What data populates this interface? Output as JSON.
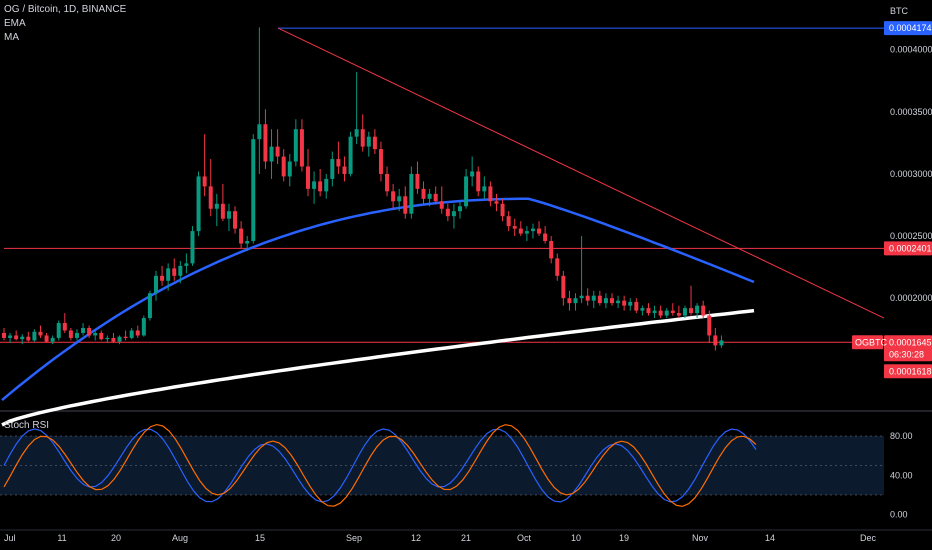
{
  "header": {
    "symbol_line": "OG / Bitcoin, 1D, BINANCE",
    "indicators": [
      "EMA",
      "MA"
    ],
    "currency": "BTC"
  },
  "price_axis": {
    "ticks": [
      {
        "v": 0.0004,
        "label": "0.0004000"
      },
      {
        "v": 0.00035,
        "label": "0.0003500"
      },
      {
        "v": 0.0003,
        "label": "0.0003000"
      },
      {
        "v": 0.00025,
        "label": "0.0002500"
      },
      {
        "v": 0.0002,
        "label": "0.0002000"
      }
    ]
  },
  "tags": {
    "high": {
      "v": 0.0004174,
      "label": "0.0004174",
      "color": "#2962ff"
    },
    "level": {
      "v": 0.0002401,
      "label": "0.0002401",
      "color": "#f23645"
    },
    "current": {
      "v": 0.0001645,
      "label": "0.0001645",
      "countdown": "06:30:28",
      "color": "#f23645"
    },
    "low": {
      "v": 0.0001618,
      "label": "0.0001618",
      "color": "#f23645"
    },
    "symbol": "OGBTC"
  },
  "time_axis": [
    "Jul",
    "11",
    "20",
    "Aug",
    "15",
    "Sep",
    "12",
    "21",
    "Oct",
    "10",
    "19",
    "Nov",
    "14",
    "Dec"
  ],
  "stoch": {
    "title": "Stoch RSI",
    "ticks": [
      {
        "v": 80,
        "label": "80.00"
      },
      {
        "v": 40,
        "label": "40.00"
      },
      {
        "v": 0,
        "label": "0.00"
      }
    ],
    "band": [
      20,
      80
    ]
  },
  "colors": {
    "up": "#089981",
    "down": "#f23645",
    "ema": "#2962ff",
    "ma": "#ffffff",
    "k": "#2962ff",
    "d": "#ff6d00"
  },
  "chart_data": {
    "type": "candlestick",
    "series_note": "OG/BTC daily candles, Jul 1 - Nov 9",
    "price_range": [
      0.00011,
      0.00044
    ],
    "dates": [
      "Jul 1",
      "Nov 9"
    ],
    "candles": [
      [
        0.000172,
        0.000176,
        0.000166,
        0.000168
      ],
      [
        0.000168,
        0.000172,
        0.000164,
        0.00017
      ],
      [
        0.00017,
        0.000174,
        0.000166,
        0.000167
      ],
      [
        0.000167,
        0.000171,
        0.000163,
        0.000169
      ],
      [
        0.000169,
        0.000173,
        0.000165,
        0.000166
      ],
      [
        0.000166,
        0.000175,
        0.000165,
        0.000173
      ],
      [
        0.000173,
        0.000178,
        0.000168,
        0.00017
      ],
      [
        0.00017,
        0.000172,
        0.000164,
        0.000165
      ],
      [
        0.000165,
        0.00017,
        0.000163,
        0.000168
      ],
      [
        0.000168,
        0.000182,
        0.000166,
        0.00018
      ],
      [
        0.00018,
        0.000188,
        0.000172,
        0.000174
      ],
      [
        0.000174,
        0.000176,
        0.000166,
        0.000168
      ],
      [
        0.000168,
        0.000175,
        0.000166,
        0.000172
      ],
      [
        0.000172,
        0.00018,
        0.00017,
        0.000176
      ],
      [
        0.000176,
        0.000178,
        0.000168,
        0.00017
      ],
      [
        0.00017,
        0.000174,
        0.000166,
        0.000172
      ],
      [
        0.000172,
        0.000174,
        0.000166,
        0.000167
      ],
      [
        0.000167,
        0.00017,
        0.000164,
        0.000168
      ],
      [
        0.000168,
        0.000172,
        0.000164,
        0.000165
      ],
      [
        0.000165,
        0.00017,
        0.000163,
        0.000169
      ],
      [
        0.000169,
        0.000174,
        0.000166,
        0.000168
      ],
      [
        0.000168,
        0.000176,
        0.000167,
        0.000174
      ],
      [
        0.000174,
        0.000178,
        0.000168,
        0.00017
      ],
      [
        0.00017,
        0.000186,
        0.000169,
        0.000184
      ],
      [
        0.000184,
        0.000206,
        0.000182,
        0.000204
      ],
      [
        0.000204,
        0.000222,
        0.000198,
        0.000218
      ],
      [
        0.000218,
        0.000226,
        0.00021,
        0.000214
      ],
      [
        0.000214,
        0.000228,
        0.000206,
        0.000224
      ],
      [
        0.000224,
        0.000232,
        0.000214,
        0.000218
      ],
      [
        0.000218,
        0.00023,
        0.000212,
        0.000226
      ],
      [
        0.000226,
        0.000236,
        0.00022,
        0.000228
      ],
      [
        0.000228,
        0.000258,
        0.000226,
        0.000254
      ],
      [
        0.000254,
        0.000302,
        0.00025,
        0.000298
      ],
      [
        0.000298,
        0.000332,
        0.000282,
        0.00029
      ],
      [
        0.00029,
        0.000312,
        0.000266,
        0.000272
      ],
      [
        0.000272,
        0.000284,
        0.000258,
        0.000276
      ],
      [
        0.000276,
        0.000292,
        0.000262,
        0.000264
      ],
      [
        0.000264,
        0.000276,
        0.000254,
        0.00027
      ],
      [
        0.00027,
        0.000274,
        0.000252,
        0.000256
      ],
      [
        0.000256,
        0.000262,
        0.00024,
        0.000244
      ],
      [
        0.000244,
        0.00025,
        0.000238,
        0.000246
      ],
      [
        0.000246,
        0.000332,
        0.000244,
        0.000328
      ],
      [
        0.000328,
        0.000418,
        0.0003,
        0.00034
      ],
      [
        0.00034,
        0.000352,
        0.000304,
        0.00031
      ],
      [
        0.00031,
        0.000336,
        0.000296,
        0.000322
      ],
      [
        0.000322,
        0.000336,
        0.000308,
        0.000314
      ],
      [
        0.000314,
        0.00032,
        0.000294,
        0.000298
      ],
      [
        0.000298,
        0.000316,
        0.00029,
        0.00031
      ],
      [
        0.00031,
        0.000344,
        0.000306,
        0.000336
      ],
      [
        0.000336,
        0.000344,
        0.000302,
        0.000306
      ],
      [
        0.000306,
        0.00032,
        0.000282,
        0.000288
      ],
      [
        0.000288,
        0.000302,
        0.000276,
        0.000294
      ],
      [
        0.000294,
        0.000304,
        0.000282,
        0.000286
      ],
      [
        0.000286,
        0.0003,
        0.00028,
        0.000296
      ],
      [
        0.000296,
        0.000318,
        0.00029,
        0.000312
      ],
      [
        0.000312,
        0.000326,
        0.0003,
        0.000306
      ],
      [
        0.000306,
        0.000314,
        0.000294,
        0.0003
      ],
      [
        0.0003,
        0.000334,
        0.000298,
        0.00033
      ],
      [
        0.00033,
        0.000382,
        0.000324,
        0.000336
      ],
      [
        0.000336,
        0.000348,
        0.000318,
        0.000322
      ],
      [
        0.000322,
        0.000334,
        0.000314,
        0.00033
      ],
      [
        0.00033,
        0.000336,
        0.000316,
        0.00032
      ],
      [
        0.00032,
        0.000326,
        0.000294,
        0.0003
      ],
      [
        0.0003,
        0.000306,
        0.000282,
        0.000286
      ],
      [
        0.000286,
        0.000292,
        0.000272,
        0.000278
      ],
      [
        0.000278,
        0.000288,
        0.00027,
        0.000282
      ],
      [
        0.000282,
        0.00029,
        0.000264,
        0.000268
      ],
      [
        0.000268,
        0.000306,
        0.000264,
        0.0003
      ],
      [
        0.0003,
        0.00031,
        0.000284,
        0.000288
      ],
      [
        0.000288,
        0.000294,
        0.000276,
        0.00028
      ],
      [
        0.00028,
        0.000288,
        0.000274,
        0.000284
      ],
      [
        0.000284,
        0.00029,
        0.000276,
        0.000278
      ],
      [
        0.000278,
        0.00029,
        0.000268,
        0.000272
      ],
      [
        0.000272,
        0.000276,
        0.000262,
        0.000266
      ],
      [
        0.000266,
        0.000276,
        0.000256,
        0.00027
      ],
      [
        0.00027,
        0.000278,
        0.000264,
        0.000274
      ],
      [
        0.000274,
        0.000304,
        0.000272,
        0.000298
      ],
      [
        0.000298,
        0.000314,
        0.00029,
        0.000302
      ],
      [
        0.000302,
        0.000306,
        0.000282,
        0.000286
      ],
      [
        0.000286,
        0.000298,
        0.00028,
        0.00029
      ],
      [
        0.00029,
        0.000294,
        0.000274,
        0.000278
      ],
      [
        0.000278,
        0.000284,
        0.00027,
        0.000276
      ],
      [
        0.000276,
        0.00028,
        0.000262,
        0.000266
      ],
      [
        0.000266,
        0.00027,
        0.000254,
        0.000258
      ],
      [
        0.000258,
        0.000264,
        0.00025,
        0.000256
      ],
      [
        0.000256,
        0.000262,
        0.00025,
        0.000252
      ],
      [
        0.000252,
        0.000258,
        0.000246,
        0.000254
      ],
      [
        0.000254,
        0.00026,
        0.000248,
        0.000256
      ],
      [
        0.000256,
        0.000262,
        0.00025,
        0.000252
      ],
      [
        0.000252,
        0.000258,
        0.000244,
        0.000246
      ],
      [
        0.000246,
        0.00025,
        0.000228,
        0.000232
      ],
      [
        0.000232,
        0.000236,
        0.000214,
        0.000218
      ],
      [
        0.000218,
        0.000222,
        0.000194,
        0.0002
      ],
      [
        0.0002,
        0.000206,
        0.00019,
        0.000196
      ],
      [
        0.000196,
        0.000204,
        0.00019,
        0.0002
      ],
      [
        0.0002,
        0.00025,
        0.000196,
        0.000202
      ],
      [
        0.000202,
        0.000208,
        0.000194,
        0.000198
      ],
      [
        0.000198,
        0.000206,
        0.000192,
        0.000202
      ],
      [
        0.000202,
        0.000206,
        0.000194,
        0.000196
      ],
      [
        0.000196,
        0.000204,
        0.000192,
        0.0002
      ],
      [
        0.0002,
        0.000204,
        0.000194,
        0.000196
      ],
      [
        0.000196,
        0.000202,
        0.000192,
        0.000198
      ],
      [
        0.000198,
        0.000202,
        0.00019,
        0.000194
      ],
      [
        0.000194,
        0.0002,
        0.00019,
        0.000197
      ],
      [
        0.000197,
        0.0002,
        0.000188,
        0.00019
      ],
      [
        0.00019,
        0.000194,
        0.000186,
        0.000192
      ],
      [
        0.000192,
        0.000196,
        0.000186,
        0.000188
      ],
      [
        0.000188,
        0.000194,
        0.000184,
        0.00019
      ],
      [
        0.00019,
        0.000194,
        0.000184,
        0.000186
      ],
      [
        0.000186,
        0.000192,
        0.000184,
        0.00019
      ],
      [
        0.00019,
        0.000196,
        0.000186,
        0.000188
      ],
      [
        0.000188,
        0.000194,
        0.000184,
        0.000186
      ],
      [
        0.000186,
        0.000194,
        0.000184,
        0.000192
      ],
      [
        0.000192,
        0.00021,
        0.000186,
        0.000188
      ],
      [
        0.000188,
        0.000196,
        0.000184,
        0.000194
      ],
      [
        0.000194,
        0.000198,
        0.000184,
        0.000186
      ],
      [
        0.000186,
        0.00019,
        0.000164,
        0.00017
      ],
      [
        0.00017,
        0.000176,
        0.000158,
        0.000162
      ],
      [
        0.000162,
        0.00017,
        0.00016,
        0.000166
      ]
    ],
    "ema": {
      "name": "EMA",
      "start": 0.000118,
      "end": 0.000213
    },
    "ma": {
      "name": "MA",
      "start": 9.8e-05,
      "end": 0.00019
    },
    "horizontal_levels": [
      0.0004174,
      0.0002401,
      0.0001645
    ],
    "trendline": {
      "from": 0.0004174,
      "to": 0.000184
    }
  }
}
